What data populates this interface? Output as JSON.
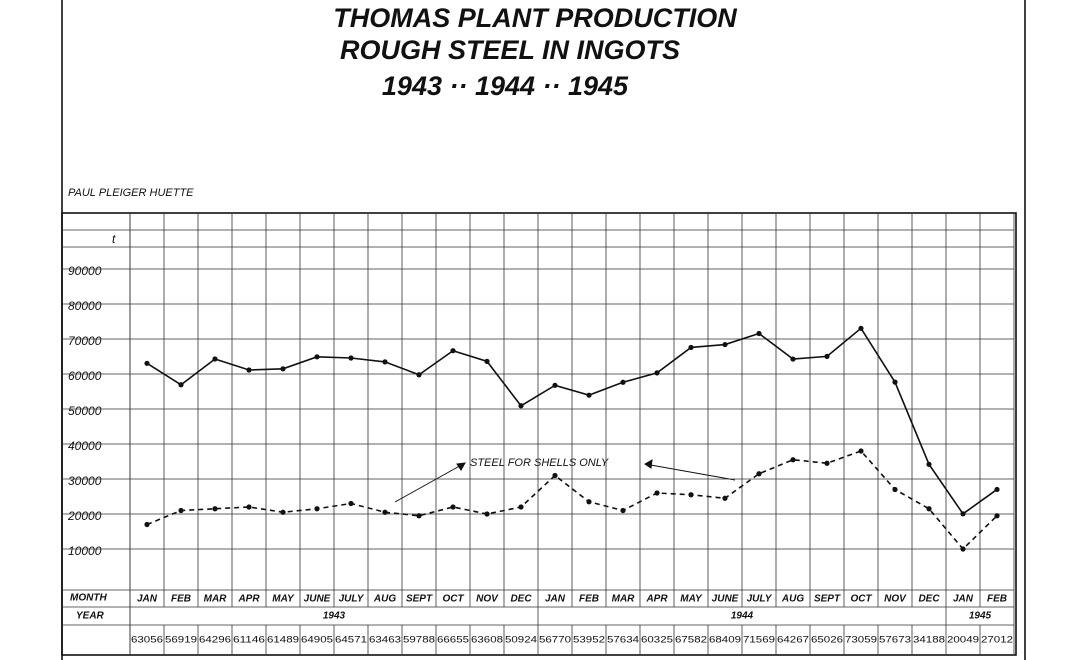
{
  "chart_data": {
    "type": "line",
    "title": [
      "THOMAS PLANT PRODUCTION",
      "ROUGH STEEL IN INGOTS",
      "1943 ·· 1944 ·· 1945"
    ],
    "subtitle": "PAUL PLEIGER HUETTE",
    "y_unit": "t",
    "row_labels": [
      "MONTH",
      "YEAR"
    ],
    "categories": [
      "JAN",
      "FEB",
      "MAR",
      "APR",
      "MAY",
      "JUNE",
      "JULY",
      "AUG",
      "SEPT",
      "OCT",
      "NOV",
      "DEC",
      "JAN",
      "FEB",
      "MAR",
      "APR",
      "MAY",
      "JUNE",
      "JULY",
      "AUG",
      "SEPT",
      "OCT",
      "NOV",
      "DEC",
      "JAN",
      "FEB"
    ],
    "years": [
      "1943",
      "1944",
      "1945"
    ],
    "series": [
      {
        "color": "#111111",
        "dashed": false,
        "values": [
          63056,
          56919,
          64296,
          61146,
          61489,
          64905,
          64571,
          63463,
          59788,
          66655,
          63608,
          50924,
          56770,
          53952,
          57634,
          60325,
          67582,
          68409,
          71569,
          64267,
          65026,
          73059,
          57673,
          34188,
          20049,
          27012
        ]
      },
      {
        "name": "STEEL FOR SHELLS ONLY",
        "color": "#111111",
        "dashed": true,
        "values": [
          17000,
          21000,
          21500,
          22000,
          20500,
          21500,
          23000,
          20500,
          19500,
          22000,
          20000,
          22000,
          31000,
          23500,
          21000,
          26000,
          25500,
          24500,
          31500,
          35500,
          34500,
          38000,
          27000,
          21500,
          10000,
          19500
        ]
      }
    ],
    "ylim": [
      0,
      100000
    ],
    "yticks": [
      10000,
      20000,
      30000,
      40000,
      50000,
      60000,
      70000,
      80000,
      90000
    ],
    "grid": true
  }
}
